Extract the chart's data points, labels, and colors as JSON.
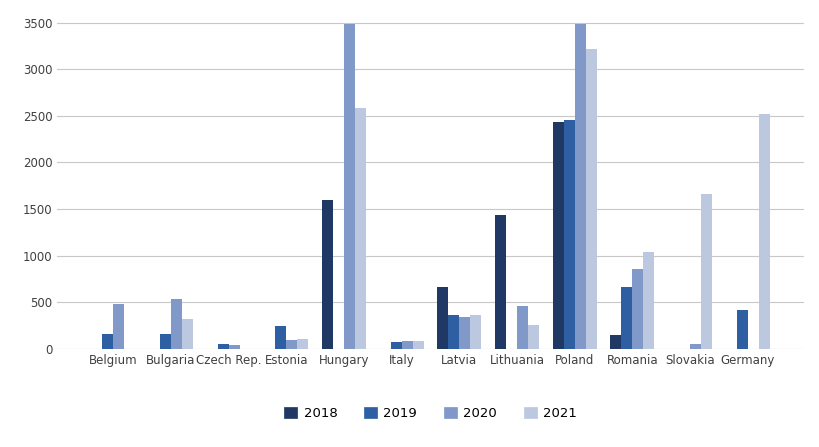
{
  "categories": [
    "Belgium",
    "Bulgaria",
    "Czech Rep.",
    "Estonia",
    "Hungary",
    "Italy",
    "Latvia",
    "Lithuania",
    "Poland",
    "Romania",
    "Slovakia",
    "Germany"
  ],
  "series": {
    "2018": [
      0,
      0,
      0,
      0,
      1600,
      0,
      660,
      1440,
      2430,
      150,
      0,
      0
    ],
    "2019": [
      160,
      160,
      50,
      240,
      0,
      75,
      360,
      0,
      2460,
      660,
      0,
      410
    ],
    "2020": [
      480,
      530,
      40,
      90,
      3490,
      80,
      340,
      460,
      3490,
      860,
      55,
      0
    ],
    "2021": [
      0,
      320,
      0,
      100,
      2580,
      80,
      360,
      250,
      3220,
      1040,
      1660,
      2520
    ]
  },
  "colors": {
    "2018": "#1f3864",
    "2019": "#2e5fa3",
    "2020": "#8099c8",
    "2021": "#bcc8e0"
  },
  "ylim": [
    0,
    3600
  ],
  "yticks": [
    0,
    500,
    1000,
    1500,
    2000,
    2500,
    3000,
    3500
  ],
  "legend_labels": [
    "2018",
    "2019",
    "2020",
    "2021"
  ],
  "background_color": "#ffffff",
  "grid_color": "#c8c8c8",
  "figsize": [
    8.2,
    4.47
  ],
  "dpi": 100
}
